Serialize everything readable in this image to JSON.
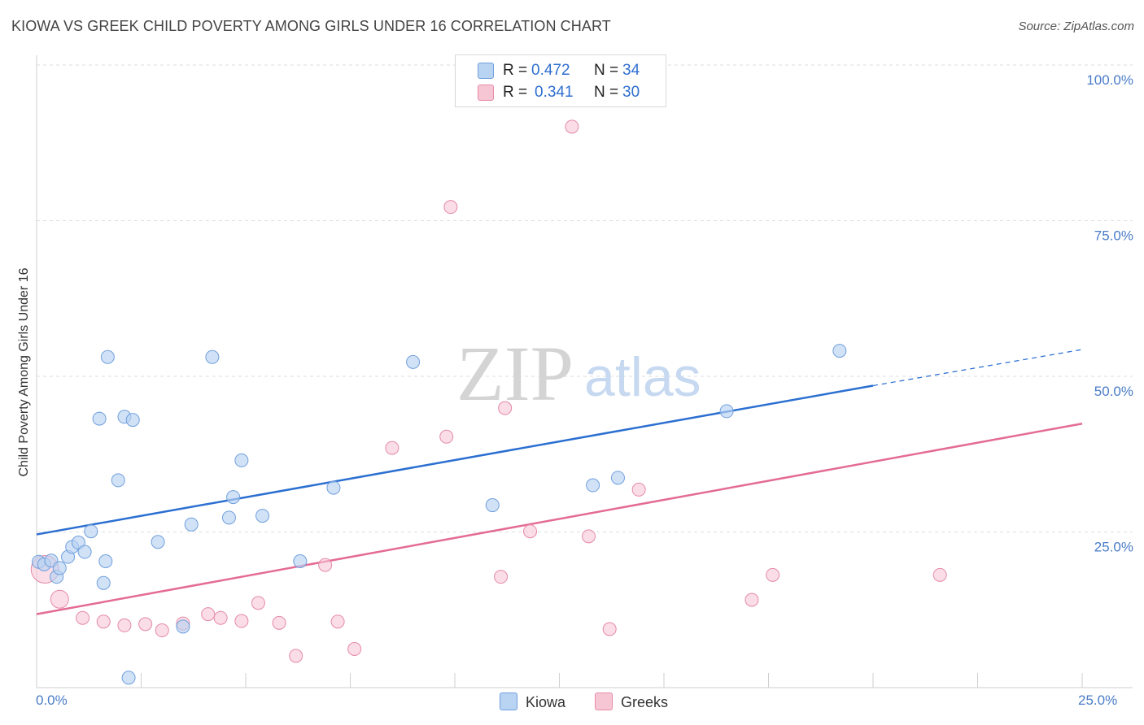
{
  "title": "KIOWA VS GREEK CHILD POVERTY AMONG GIRLS UNDER 16 CORRELATION CHART",
  "source": "Source: ZipAtlas.com",
  "watermark": {
    "zip": "ZIP",
    "atlas": "atlas"
  },
  "colors": {
    "kiowa_fill": "#b9d3f3",
    "kiowa_stroke": "#6f9fdc",
    "kiowa_line": "#2b6fd1",
    "greeks_fill": "#f7c6d5",
    "greeks_stroke": "#e58aa6",
    "greeks_line": "#e46b94",
    "tick_label": "#4a7cc7",
    "grid": "#dedede"
  },
  "legend": {
    "kiowa": {
      "r_label": "R =",
      "r_value": "0.472",
      "n_label": "N =",
      "n_value": "34",
      "name": "Kiowa"
    },
    "greeks": {
      "r_label": "R =",
      "r_value": "0.341",
      "n_label": "N =",
      "n_value": "30",
      "name": "Greeks"
    }
  },
  "chart_data": {
    "type": "scatter",
    "title": "KIOWA VS GREEK CHILD POVERTY AMONG GIRLS UNDER 16 CORRELATION CHART",
    "xlabel": "",
    "ylabel": "Child Poverty Among Girls Under 16",
    "xlim": [
      0,
      25
    ],
    "ylim": [
      0,
      100
    ],
    "x_tick_labels": [
      "0.0%",
      "25.0%"
    ],
    "y_ticks": [
      25,
      50,
      75,
      100
    ],
    "y_tick_labels": [
      "25.0%",
      "50.0%",
      "75.0%",
      "100.0%"
    ],
    "grid": true,
    "legend_position": "top-center",
    "series": [
      {
        "name": "Kiowa",
        "r": 0.472,
        "n": 34,
        "trend": {
          "x0": 0,
          "y0": 24.6,
          "x1": 20,
          "y1": 48.5,
          "dashed_to_x": 25,
          "dashed_to_y": 54.3
        },
        "points": [
          {
            "x": 0.05,
            "y": 20.2
          },
          {
            "x": 0.18,
            "y": 19.8
          },
          {
            "x": 0.35,
            "y": 20.4
          },
          {
            "x": 0.48,
            "y": 17.8
          },
          {
            "x": 0.55,
            "y": 19.2
          },
          {
            "x": 0.75,
            "y": 21.0
          },
          {
            "x": 0.85,
            "y": 22.6
          },
          {
            "x": 1.0,
            "y": 23.3
          },
          {
            "x": 1.15,
            "y": 21.8
          },
          {
            "x": 1.3,
            "y": 25.1
          },
          {
            "x": 1.5,
            "y": 43.2
          },
          {
            "x": 1.6,
            "y": 16.8
          },
          {
            "x": 1.65,
            "y": 20.3
          },
          {
            "x": 1.7,
            "y": 53.1
          },
          {
            "x": 1.95,
            "y": 33.3
          },
          {
            "x": 2.1,
            "y": 43.5
          },
          {
            "x": 2.2,
            "y": 1.6
          },
          {
            "x": 2.3,
            "y": 43.0
          },
          {
            "x": 2.9,
            "y": 23.4
          },
          {
            "x": 3.5,
            "y": 9.8
          },
          {
            "x": 3.7,
            "y": 26.2
          },
          {
            "x": 4.2,
            "y": 53.1
          },
          {
            "x": 4.6,
            "y": 27.3
          },
          {
            "x": 4.7,
            "y": 30.6
          },
          {
            "x": 4.9,
            "y": 36.5
          },
          {
            "x": 5.4,
            "y": 27.6
          },
          {
            "x": 6.3,
            "y": 20.3
          },
          {
            "x": 7.1,
            "y": 32.1
          },
          {
            "x": 9.0,
            "y": 52.3
          },
          {
            "x": 10.9,
            "y": 29.3
          },
          {
            "x": 13.3,
            "y": 32.5
          },
          {
            "x": 13.9,
            "y": 33.7
          },
          {
            "x": 16.5,
            "y": 44.4
          },
          {
            "x": 19.2,
            "y": 54.1
          }
        ]
      },
      {
        "name": "Greeks",
        "r": 0.341,
        "n": 30,
        "trend": {
          "x0": 0,
          "y0": 11.8,
          "x1": 25,
          "y1": 42.4
        },
        "points": [
          {
            "x": 0.2,
            "y": 19.0
          },
          {
            "x": 0.55,
            "y": 14.2
          },
          {
            "x": 1.1,
            "y": 11.2
          },
          {
            "x": 1.6,
            "y": 10.6
          },
          {
            "x": 2.1,
            "y": 10.0
          },
          {
            "x": 2.6,
            "y": 10.2
          },
          {
            "x": 3.0,
            "y": 9.2
          },
          {
            "x": 3.5,
            "y": 10.3
          },
          {
            "x": 4.1,
            "y": 11.8
          },
          {
            "x": 4.4,
            "y": 11.2
          },
          {
            "x": 4.9,
            "y": 10.7
          },
          {
            "x": 5.3,
            "y": 13.6
          },
          {
            "x": 5.8,
            "y": 10.4
          },
          {
            "x": 6.2,
            "y": 5.1
          },
          {
            "x": 6.9,
            "y": 19.7
          },
          {
            "x": 7.2,
            "y": 10.6
          },
          {
            "x": 7.6,
            "y": 6.2
          },
          {
            "x": 8.5,
            "y": 38.5
          },
          {
            "x": 9.8,
            "y": 40.3
          },
          {
            "x": 9.9,
            "y": 77.2
          },
          {
            "x": 11.1,
            "y": 17.8
          },
          {
            "x": 11.2,
            "y": 44.9
          },
          {
            "x": 11.8,
            "y": 25.1
          },
          {
            "x": 12.8,
            "y": 90.1
          },
          {
            "x": 13.2,
            "y": 24.3
          },
          {
            "x": 13.7,
            "y": 9.4
          },
          {
            "x": 14.4,
            "y": 31.8
          },
          {
            "x": 17.1,
            "y": 14.1
          },
          {
            "x": 17.6,
            "y": 18.1
          },
          {
            "x": 21.6,
            "y": 18.1
          }
        ]
      }
    ]
  }
}
